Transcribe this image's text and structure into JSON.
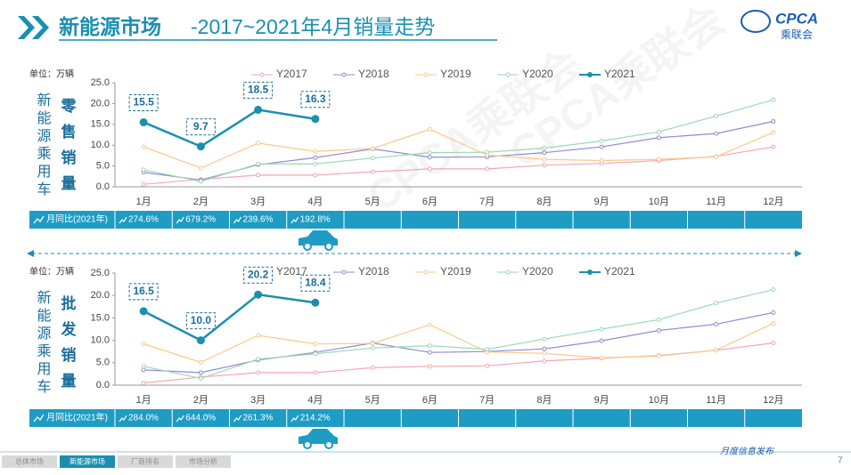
{
  "header": {
    "title_main": "新能源市场",
    "title_rest": "-2017~2021年4月销量走势"
  },
  "logo": {
    "name": "CPCA",
    "sub": "乘联会"
  },
  "watermark": "CPCA乘联会",
  "chart_data": [
    {
      "type": "line",
      "unit": "单位：万辆",
      "side_label": "新能源乘用车",
      "title": "零售销量",
      "categories": [
        "1月",
        "2月",
        "3月",
        "4月",
        "5月",
        "6月",
        "7月",
        "8月",
        "9月",
        "10月",
        "11月",
        "12月"
      ],
      "ylim": [
        0,
        25
      ],
      "yticks": [
        {
          "value": 0,
          "label": "0.0"
        },
        {
          "value": 5,
          "label": "5.0"
        },
        {
          "value": 10,
          "label": "10.0"
        },
        {
          "value": 15,
          "label": "15.0"
        },
        {
          "value": 20,
          "label": "20.0"
        },
        {
          "value": 25,
          "label": "25.0"
        }
      ],
      "series": [
        {
          "name": "Y2017",
          "color": "#f4a6b5",
          "values": [
            0.6,
            1.8,
            2.8,
            2.8,
            3.6,
            4.3,
            4.3,
            5.2,
            5.6,
            6.3,
            7.3,
            9.6
          ]
        },
        {
          "name": "Y2018",
          "color": "#8e8ccf",
          "values": [
            3.5,
            1.6,
            5.3,
            7.0,
            9.1,
            7.1,
            7.2,
            8.2,
            9.6,
            11.8,
            12.8,
            15.7
          ]
        },
        {
          "name": "Y2019",
          "color": "#f9c98a",
          "values": [
            9.6,
            4.5,
            10.5,
            8.5,
            9.2,
            13.8,
            7.6,
            6.6,
            6.3,
            6.6,
            7.2,
            13.1
          ]
        },
        {
          "name": "Y2020",
          "color": "#9ad9b5",
          "values": [
            4.1,
            1.3,
            5.5,
            5.5,
            6.9,
            8.2,
            8.3,
            9.3,
            11.0,
            13.2,
            17.0,
            20.9
          ]
        },
        {
          "name": "Y2021",
          "color": "#1a8fb0",
          "values": [
            15.5,
            9.7,
            18.5,
            16.3,
            null,
            null,
            null,
            null,
            null,
            null,
            null,
            null
          ],
          "value_labels": [
            "15.5",
            "9.7",
            "18.5",
            "16.3",
            null,
            null,
            null,
            null,
            null,
            null,
            null,
            null
          ]
        }
      ],
      "yoy": {
        "label": "月同比(2021年)",
        "values": [
          "274.6%",
          "679.2%",
          "239.6%",
          "192.8%"
        ]
      }
    },
    {
      "type": "line",
      "unit": "单位：万辆",
      "side_label": "新能源乘用车",
      "title": "批发销量",
      "categories": [
        "1月",
        "2月",
        "3月",
        "4月",
        "5月",
        "6月",
        "7月",
        "8月",
        "9月",
        "10月",
        "11月",
        "12月"
      ],
      "ylim": [
        0,
        25
      ],
      "yticks": [
        {
          "value": 0,
          "label": "0.0"
        },
        {
          "value": 5,
          "label": "5.0"
        },
        {
          "value": 10,
          "label": "10.0"
        },
        {
          "value": 15,
          "label": "15.0"
        },
        {
          "value": 20,
          "label": "20.0"
        },
        {
          "value": 25,
          "label": "25.0"
        }
      ],
      "series": [
        {
          "name": "Y2017",
          "color": "#f4a6b5",
          "values": [
            0.5,
            1.8,
            2.8,
            2.8,
            3.9,
            4.2,
            4.3,
            5.4,
            6.0,
            6.6,
            7.8,
            9.4
          ]
        },
        {
          "name": "Y2018",
          "color": "#8e8ccf",
          "values": [
            3.4,
            2.8,
            5.6,
            7.3,
            9.4,
            7.3,
            7.5,
            8.1,
            9.9,
            12.2,
            13.6,
            16.2
          ]
        },
        {
          "name": "Y2019",
          "color": "#f9c98a",
          "values": [
            9.2,
            5.1,
            11.1,
            9.2,
            9.3,
            13.5,
            7.4,
            7.1,
            6.1,
            6.5,
            7.8,
            13.8
          ]
        },
        {
          "name": "Y2020",
          "color": "#9ad9b5",
          "values": [
            4.2,
            1.5,
            5.8,
            7.0,
            8.3,
            8.8,
            8.0,
            10.3,
            12.5,
            14.6,
            18.3,
            21.3
          ]
        },
        {
          "name": "Y2021",
          "color": "#1a8fb0",
          "values": [
            16.5,
            10.0,
            20.2,
            18.4,
            null,
            null,
            null,
            null,
            null,
            null,
            null,
            null
          ],
          "value_labels": [
            "16.5",
            "10.0",
            "20.2",
            "18.4",
            null,
            null,
            null,
            null,
            null,
            null,
            null,
            null
          ]
        }
      ],
      "yoy": {
        "label": "月同比(2021年)",
        "values": [
          "284.0%",
          "644.0%",
          "261.3%",
          "214.2%"
        ]
      }
    }
  ],
  "footer": {
    "tabs": [
      "总体市场",
      "新能源市场",
      "厂商排名",
      "市场分析"
    ],
    "active": 1,
    "note": "月度信息发布",
    "page": 7
  }
}
